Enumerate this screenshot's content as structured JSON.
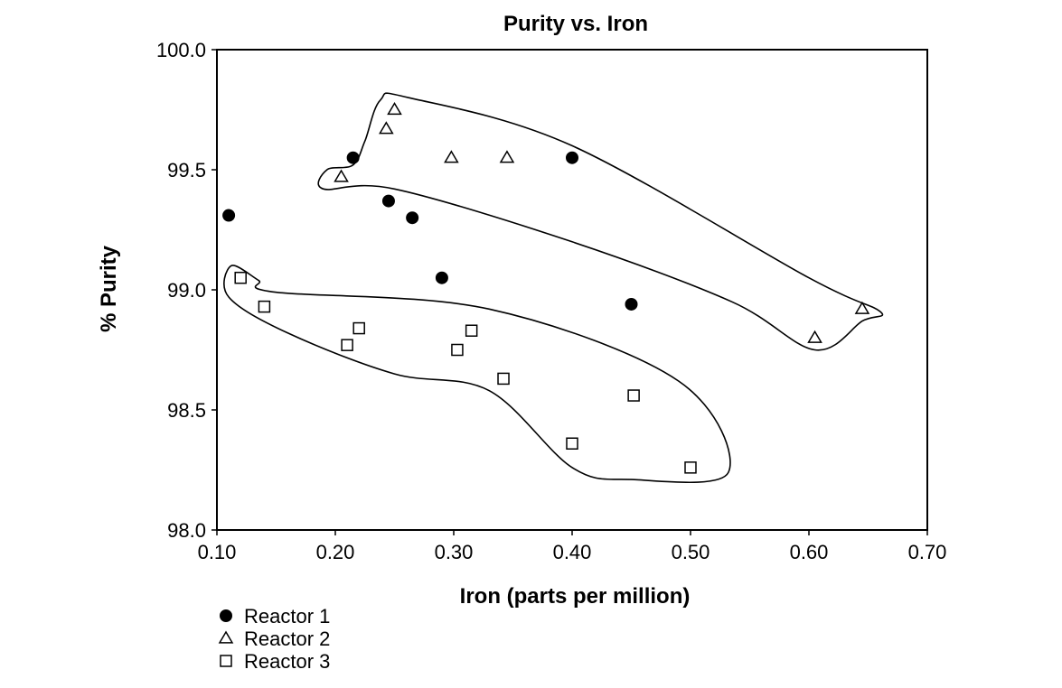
{
  "chart_data": {
    "type": "scatter",
    "title": "Purity vs. Iron",
    "xlabel": "Iron (parts per million)",
    "ylabel": "% Purity",
    "xlim": [
      0.1,
      0.7
    ],
    "ylim": [
      98.0,
      100.0
    ],
    "xticks": [
      "0.10",
      "0.20",
      "0.30",
      "0.40",
      "0.50",
      "0.60",
      "0.70"
    ],
    "yticks": [
      "98.0",
      "98.5",
      "99.0",
      "99.5",
      "100.0"
    ],
    "grid": false,
    "legend_position": "bottom-left",
    "series": [
      {
        "name": "Reactor 1",
        "marker": "filled-circle",
        "points": [
          {
            "x": 0.11,
            "y": 99.31
          },
          {
            "x": 0.215,
            "y": 99.55
          },
          {
            "x": 0.245,
            "y": 99.37
          },
          {
            "x": 0.265,
            "y": 99.3
          },
          {
            "x": 0.29,
            "y": 99.05
          },
          {
            "x": 0.4,
            "y": 99.55
          },
          {
            "x": 0.45,
            "y": 98.94
          }
        ]
      },
      {
        "name": "Reactor 2",
        "marker": "open-triangle",
        "points": [
          {
            "x": 0.205,
            "y": 99.47
          },
          {
            "x": 0.243,
            "y": 99.67
          },
          {
            "x": 0.25,
            "y": 99.75
          },
          {
            "x": 0.298,
            "y": 99.55
          },
          {
            "x": 0.345,
            "y": 99.55
          },
          {
            "x": 0.605,
            "y": 98.8
          },
          {
            "x": 0.645,
            "y": 98.92
          }
        ]
      },
      {
        "name": "Reactor 3",
        "marker": "open-square",
        "points": [
          {
            "x": 0.12,
            "y": 99.05
          },
          {
            "x": 0.14,
            "y": 98.93
          },
          {
            "x": 0.21,
            "y": 98.77
          },
          {
            "x": 0.22,
            "y": 98.84
          },
          {
            "x": 0.303,
            "y": 98.75
          },
          {
            "x": 0.315,
            "y": 98.83
          },
          {
            "x": 0.342,
            "y": 98.63
          },
          {
            "x": 0.4,
            "y": 98.36
          },
          {
            "x": 0.452,
            "y": 98.56
          },
          {
            "x": 0.5,
            "y": 98.26
          }
        ]
      }
    ],
    "enclosures": [
      {
        "series": "Reactor 2",
        "outline": [
          [
            0.193,
            99.5
          ],
          [
            0.215,
            99.52
          ],
          [
            0.225,
            99.62
          ],
          [
            0.238,
            99.79
          ],
          [
            0.262,
            99.8
          ],
          [
            0.4,
            99.6
          ],
          [
            0.6,
            99.05
          ],
          [
            0.66,
            98.91
          ],
          [
            0.645,
            98.87
          ],
          [
            0.605,
            98.75
          ],
          [
            0.535,
            98.95
          ],
          [
            0.4,
            99.2
          ],
          [
            0.25,
            99.42
          ],
          [
            0.19,
            99.42
          ]
        ]
      },
      {
        "series": "Reactor 3",
        "outline": [
          [
            0.112,
            99.1
          ],
          [
            0.135,
            99.04
          ],
          [
            0.15,
            98.99
          ],
          [
            0.33,
            98.92
          ],
          [
            0.49,
            98.62
          ],
          [
            0.532,
            98.24
          ],
          [
            0.45,
            98.21
          ],
          [
            0.4,
            98.26
          ],
          [
            0.33,
            98.58
          ],
          [
            0.25,
            98.65
          ],
          [
            0.16,
            98.82
          ],
          [
            0.11,
            98.97
          ]
        ]
      }
    ]
  }
}
